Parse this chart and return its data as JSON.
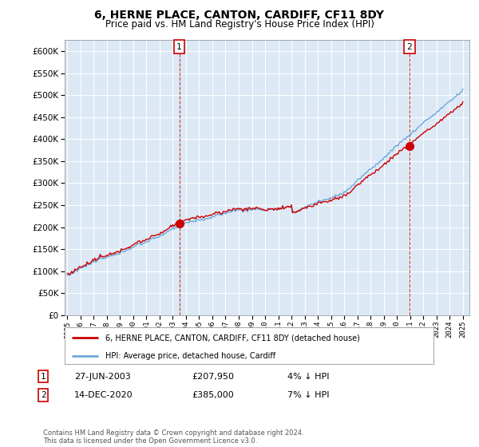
{
  "title": "6, HERNE PLACE, CANTON, CARDIFF, CF11 8DY",
  "subtitle": "Price paid vs. HM Land Registry's House Price Index (HPI)",
  "ytick_vals": [
    0,
    50000,
    100000,
    150000,
    200000,
    250000,
    300000,
    350000,
    400000,
    450000,
    500000,
    550000,
    600000
  ],
  "ylim": [
    0,
    625000
  ],
  "xstart_year": 1995,
  "xend_year": 2025,
  "sale1_year": 2003.49,
  "sale1_price": 207950,
  "sale2_year": 2020.95,
  "sale2_price": 385000,
  "legend_line1": "6, HERNE PLACE, CANTON, CARDIFF, CF11 8DY (detached house)",
  "legend_line2": "HPI: Average price, detached house, Cardiff",
  "table_row1_num": "1",
  "table_row1_date": "27-JUN-2003",
  "table_row1_price": "£207,950",
  "table_row1_hpi": "4% ↓ HPI",
  "table_row2_num": "2",
  "table_row2_date": "14-DEC-2020",
  "table_row2_price": "£385,000",
  "table_row2_hpi": "7% ↓ HPI",
  "footer": "Contains HM Land Registry data © Crown copyright and database right 2024.\nThis data is licensed under the Open Government Licence v3.0.",
  "hpi_color": "#6fa8dc",
  "price_color": "#cc0000",
  "vline_color": "#cc0000",
  "plot_bg_color": "#dce9f5",
  "fig_bg_color": "#ffffff",
  "grid_color": "#ffffff",
  "label_box_color": "#cc0000"
}
